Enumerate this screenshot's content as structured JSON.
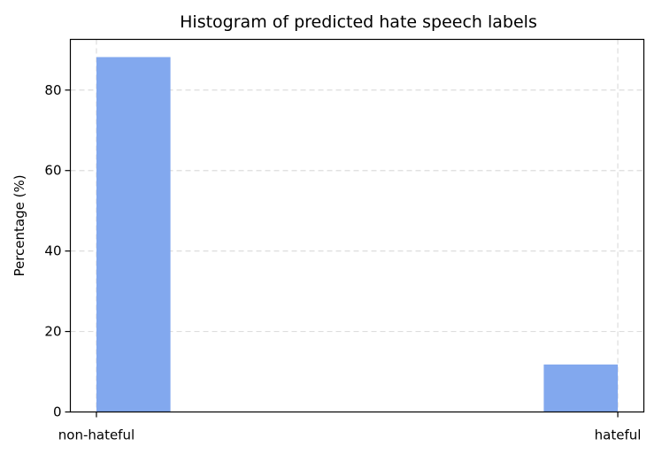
{
  "chart_data": {
    "type": "bar",
    "title": "Histogram of predicted hate speech labels",
    "xlabel": "",
    "ylabel": "Percentage (%)",
    "categories": [
      "non-hateful",
      "hateful"
    ],
    "values": [
      88.2,
      11.8
    ],
    "x_positions": [
      0,
      1
    ],
    "xlim": [
      -0.05,
      1.05
    ],
    "bin_width": 0.142,
    "ylim": [
      0,
      92.6
    ],
    "yticks": [
      0,
      20,
      40,
      60,
      80
    ],
    "grid": true,
    "bar_color": "#82A8EE",
    "legend": "none"
  }
}
